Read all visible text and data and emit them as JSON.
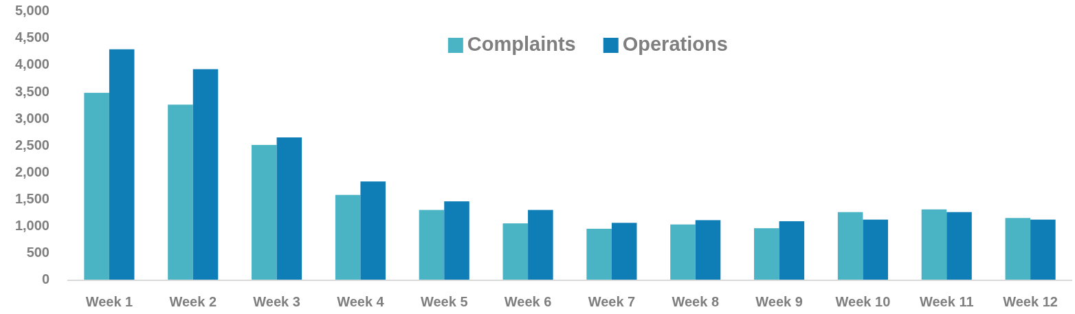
{
  "chart_data": {
    "type": "bar",
    "categories": [
      "Week 1",
      "Week 2",
      "Week 3",
      "Week 4",
      "Week 5",
      "Week 6",
      "Week 7",
      "Week 8",
      "Week 9",
      "Week 10",
      "Week 11",
      "Week 12"
    ],
    "series": [
      {
        "name": "Complaints",
        "color": "#4bb4c4",
        "values": [
          3490,
          3270,
          2520,
          1590,
          1310,
          1060,
          960,
          1040,
          970,
          1270,
          1320,
          1160
        ]
      },
      {
        "name": "Operations",
        "color": "#0f7eb7",
        "values": [
          4300,
          3930,
          2660,
          1840,
          1470,
          1310,
          1070,
          1120,
          1100,
          1130,
          1270,
          1130
        ]
      }
    ],
    "ylim": [
      0,
      5000
    ],
    "yticks": [
      0,
      500,
      {
        "value": 1000,
        "label": "1,000"
      },
      {
        "value": 1500,
        "label": "1,500"
      },
      {
        "value": 2000,
        "label": "2,000"
      },
      {
        "value": 2500,
        "label": "2,500"
      },
      {
        "value": 3000,
        "label": "3,000"
      },
      {
        "value": 3500,
        "label": "3,500"
      },
      {
        "value": 4000,
        "label": "4,000"
      },
      {
        "value": 4500,
        "label": "4,500"
      },
      {
        "value": 5000,
        "label": "5,000"
      }
    ],
    "legend": "top"
  }
}
